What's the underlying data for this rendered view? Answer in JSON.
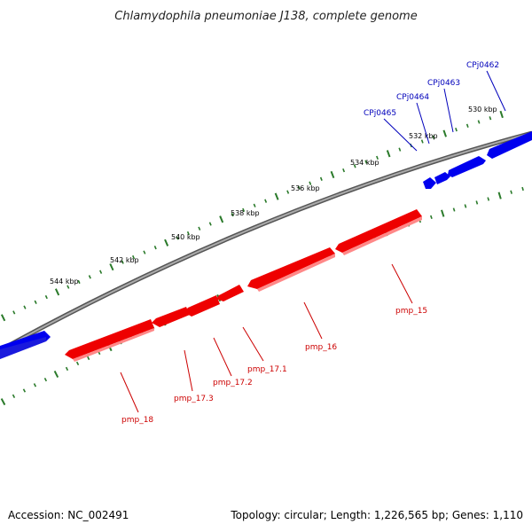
{
  "title": "Chlamydophila pneumoniae J138, complete genome",
  "ticks": [
    {
      "label": "530 kbp"
    },
    {
      "label": "532 kbp"
    },
    {
      "label": "534 kbp"
    },
    {
      "label": "536 kbp"
    },
    {
      "label": "538 kbp"
    },
    {
      "label": "540 kbp"
    },
    {
      "label": "542 kbp"
    },
    {
      "label": "544 kbp"
    }
  ],
  "blue_genes": [
    {
      "label": "CPj0462"
    },
    {
      "label": "CPj0463"
    },
    {
      "label": "CPj0464"
    },
    {
      "label": "CPj0465"
    }
  ],
  "red_genes": [
    {
      "label": "pmp_15"
    },
    {
      "label": "pmp_16"
    },
    {
      "label": "pmp_17.1"
    },
    {
      "label": "pmp_17.2"
    },
    {
      "label": "pmp_17.3"
    },
    {
      "label": "pmp_18"
    }
  ],
  "footer": {
    "accession": "Accession: NC_002491",
    "topology": "Topology: circular; Length: 1,226,565 bp; Genes: 1,110"
  },
  "colors": {
    "forward_gene": "#0000ee",
    "reverse_gene": "#ee0000",
    "backbone": "#888888",
    "tick": "#2a7a2a"
  }
}
